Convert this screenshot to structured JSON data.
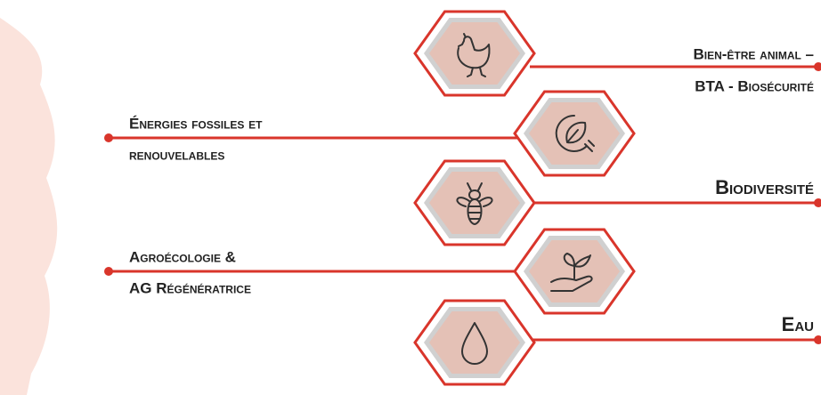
{
  "topics": [
    {
      "lines": [
        "Bien-être animal –",
        "BTA - Biosécurité"
      ]
    },
    {
      "lines": [
        "Énergies fossiles et",
        "renouvelables"
      ]
    },
    {
      "lines": [
        "Biodiversité"
      ]
    },
    {
      "lines": [
        "Agroécologie &",
        "AG Régénératrice"
      ]
    },
    {
      "lines": [
        "Eau"
      ]
    }
  ]
}
